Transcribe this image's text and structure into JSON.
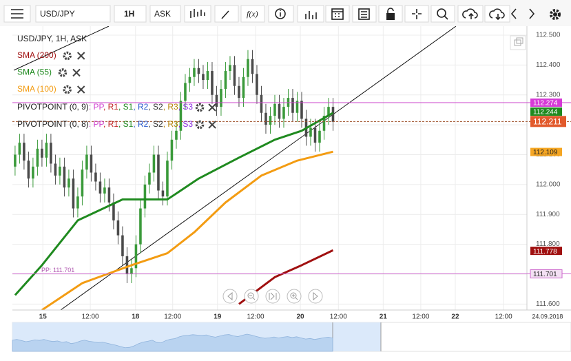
{
  "toolbar": {
    "symbol": "USD/JPY",
    "interval": "1H",
    "price": "ASK",
    "fx": "f(x)"
  },
  "chart_data": {
    "type": "candlestick",
    "legend": {
      "title": "USD/JPY, 1H, ASK",
      "indicators": [
        {
          "name": "SMA (200)",
          "color": "#a01010"
        },
        {
          "name": "SMA (55)",
          "color": "#1f8a1f"
        },
        {
          "name": "SMA (100)",
          "color": "#f39c12"
        }
      ],
      "pivots": [
        {
          "name": "PIVOTPOINT (0, 9)",
          "tokens": [
            ": PP",
            ", R1",
            ", S1",
            ", R2",
            ", S2",
            ", R3",
            ", S3"
          ]
        },
        {
          "name": "PIVOTPOINT (0, 8)",
          "tokens": [
            ": PP",
            ", R1",
            ", S1",
            ", R2",
            ", S2",
            ", R3",
            ", S3"
          ]
        }
      ],
      "token_colors": [
        "#d040d0",
        "#c02020",
        "#1f8a1f",
        "#2255cc",
        "#333333",
        "#b8860b",
        "#8a2be2"
      ]
    },
    "up_color": "#3a9a3a",
    "down_color": "#4a4a4a",
    "candles": [
      [
        112.06,
        112.13,
        112.03,
        112.1
      ],
      [
        112.1,
        112.17,
        112.07,
        112.14
      ],
      [
        112.14,
        112.17,
        112.05,
        112.08
      ],
      [
        112.08,
        112.11,
        111.99,
        112.02
      ],
      [
        112.02,
        112.09,
        111.99,
        112.06
      ],
      [
        112.06,
        112.15,
        112.03,
        112.12
      ],
      [
        112.12,
        112.15,
        112.06,
        112.09
      ],
      [
        112.09,
        112.17,
        112.06,
        112.14
      ],
      [
        112.14,
        112.17,
        112.04,
        112.07
      ],
      [
        112.07,
        112.1,
        112.0,
        112.03
      ],
      [
        112.03,
        112.09,
        112.0,
        112.06
      ],
      [
        112.06,
        112.09,
        111.96,
        111.99
      ],
      [
        111.99,
        112.05,
        111.96,
        112.02
      ],
      [
        112.02,
        112.05,
        111.89,
        111.92
      ],
      [
        111.92,
        111.99,
        111.89,
        111.96
      ],
      [
        111.96,
        112.08,
        111.93,
        112.05
      ],
      [
        112.05,
        112.13,
        112.02,
        112.1
      ],
      [
        112.1,
        112.13,
        112.01,
        112.04
      ],
      [
        112.04,
        112.07,
        111.98,
        112.01
      ],
      [
        112.01,
        112.04,
        111.94,
        111.97
      ],
      [
        111.97,
        112.02,
        111.94,
        111.99
      ],
      [
        111.99,
        112.02,
        111.91,
        111.94
      ],
      [
        111.94,
        111.97,
        111.85,
        111.88
      ],
      [
        111.88,
        111.91,
        111.8,
        111.83
      ],
      [
        111.83,
        111.86,
        111.73,
        111.76
      ],
      [
        111.76,
        111.79,
        111.67,
        111.7
      ],
      [
        111.7,
        111.75,
        111.67,
        111.72
      ],
      [
        111.72,
        111.83,
        111.69,
        111.8
      ],
      [
        111.8,
        111.95,
        111.77,
        111.92
      ],
      [
        111.92,
        112.03,
        111.89,
        112.0
      ],
      [
        112.0,
        112.07,
        111.97,
        112.04
      ],
      [
        112.04,
        112.13,
        112.01,
        112.1
      ],
      [
        112.1,
        112.13,
        111.95,
        111.98
      ],
      [
        111.98,
        112.01,
        111.93,
        111.96
      ],
      [
        111.96,
        112.11,
        111.93,
        112.08
      ],
      [
        112.08,
        112.18,
        112.05,
        112.15
      ],
      [
        112.15,
        112.21,
        112.12,
        112.18
      ],
      [
        112.18,
        112.31,
        112.15,
        112.28
      ],
      [
        112.28,
        112.37,
        112.25,
        112.34
      ],
      [
        112.34,
        112.39,
        112.31,
        112.36
      ],
      [
        112.36,
        112.42,
        112.33,
        112.39
      ],
      [
        112.39,
        112.42,
        112.34,
        112.37
      ],
      [
        112.37,
        112.4,
        112.32,
        112.35
      ],
      [
        112.35,
        112.41,
        112.32,
        112.38
      ],
      [
        112.38,
        112.41,
        112.27,
        112.3
      ],
      [
        112.3,
        112.33,
        112.23,
        112.26
      ],
      [
        112.26,
        112.35,
        112.23,
        112.32
      ],
      [
        112.32,
        112.41,
        112.29,
        112.38
      ],
      [
        112.38,
        112.43,
        112.35,
        112.4
      ],
      [
        112.4,
        112.43,
        112.3,
        112.33
      ],
      [
        112.33,
        112.36,
        112.26,
        112.29
      ],
      [
        112.29,
        112.39,
        112.26,
        112.36
      ],
      [
        112.36,
        112.45,
        112.33,
        112.42
      ],
      [
        112.42,
        112.45,
        112.34,
        112.37
      ],
      [
        112.37,
        112.4,
        112.27,
        112.3
      ],
      [
        112.3,
        112.33,
        112.21,
        112.24
      ],
      [
        112.24,
        112.27,
        112.17,
        112.2
      ],
      [
        112.2,
        112.26,
        112.17,
        112.23
      ],
      [
        112.23,
        112.3,
        112.2,
        112.27
      ],
      [
        112.27,
        112.3,
        112.19,
        112.22
      ],
      [
        112.22,
        112.29,
        112.19,
        112.26
      ],
      [
        112.26,
        112.32,
        112.23,
        112.29
      ],
      [
        112.29,
        112.32,
        112.21,
        112.24
      ],
      [
        112.24,
        112.31,
        112.21,
        112.28
      ],
      [
        112.28,
        112.31,
        112.19,
        112.22
      ],
      [
        112.22,
        112.25,
        112.13,
        112.16
      ],
      [
        112.16,
        112.22,
        112.13,
        112.19
      ],
      [
        112.19,
        112.22,
        112.11,
        112.14
      ],
      [
        112.14,
        112.21,
        112.11,
        112.18
      ],
      [
        112.18,
        112.26,
        112.15,
        112.23
      ],
      [
        112.23,
        112.29,
        112.2,
        112.26
      ],
      [
        112.26,
        112.29,
        112.18,
        112.21
      ]
    ],
    "series": [
      {
        "name": "SMA (55)",
        "color": "#1f8a1f",
        "x": [
          0,
          6,
          14,
          24,
          34,
          41,
          50,
          58,
          64,
          71
        ],
        "values": [
          111.63,
          111.73,
          111.88,
          111.95,
          111.95,
          112.02,
          112.09,
          112.15,
          112.18,
          112.24
        ]
      },
      {
        "name": "SMA (100)",
        "color": "#f39c12",
        "x": [
          6,
          15,
          26,
          34,
          40,
          47,
          55,
          63,
          71
        ],
        "values": [
          111.58,
          111.67,
          111.73,
          111.77,
          111.84,
          111.94,
          112.03,
          112.08,
          112.11
        ]
      },
      {
        "name": "SMA (200)",
        "color": "#a01010",
        "x": [
          50,
          58,
          64,
          71
        ],
        "values": [
          111.6,
          111.69,
          111.73,
          111.78
        ]
      }
    ],
    "hlines": [
      {
        "value": 112.274,
        "color": "#cc44cc",
        "dash": false
      },
      {
        "value": 111.701,
        "color": "#cc66cc",
        "dash": false
      },
      {
        "value": 112.211,
        "color": "#a0522d",
        "dash": true
      }
    ],
    "badges": [
      {
        "value": 112.274,
        "color": "#d63ad6",
        "text_color": "#ffffff"
      },
      {
        "value": 112.244,
        "color": "#1f8a1f",
        "text_color": "#ffffff"
      },
      {
        "value": 112.211,
        "color": "#e25a2c",
        "text_color": "#ffffff"
      },
      {
        "value": 112.109,
        "color": "#f5a623",
        "text_color": "#222222"
      },
      {
        "value": 111.778,
        "color": "#a01010",
        "text_color": "#ffffff"
      },
      {
        "value": 111.701,
        "color": "#f3e0f3",
        "text_color": "#222222"
      }
    ],
    "annotation": "PP: 111.701",
    "xlim": [
      -0.6,
      114.3
    ],
    "ylim": [
      111.58,
      112.53
    ],
    "grid": true,
    "yticks": [
      {
        "value": 112.5,
        "label": "112.500"
      },
      {
        "value": 112.4,
        "label": "112.400"
      },
      {
        "value": 112.3,
        "label": "112.300"
      },
      {
        "value": 112.2,
        "label": "112.200"
      },
      {
        "value": 112.1,
        "label": "112.100"
      },
      {
        "value": 112.0,
        "label": "112.000"
      },
      {
        "value": 111.9,
        "label": "111.900"
      },
      {
        "value": 111.8,
        "label": "111.800"
      },
      {
        "value": 111.7,
        "label": "111.700"
      },
      {
        "value": 111.6,
        "label": "111.600"
      }
    ],
    "xticks": [
      {
        "value": 6.2,
        "label": "15"
      },
      {
        "value": 16.8,
        "label": "12:00"
      },
      {
        "value": 26.9,
        "label": "18"
      },
      {
        "value": 35.2,
        "label": "12:00"
      },
      {
        "value": 45.2,
        "label": "19"
      },
      {
        "value": 53.7,
        "label": "12:00"
      },
      {
        "value": 63.7,
        "label": "20"
      },
      {
        "value": 72.2,
        "label": "12:00"
      },
      {
        "value": 82.2,
        "label": "21"
      },
      {
        "value": 90.6,
        "label": "12:00"
      },
      {
        "value": 98.3,
        "label": "22"
      },
      {
        "value": 109.1,
        "label": "12:00"
      },
      {
        "value": 118.9,
        "label": "24.09.2018"
      }
    ]
  }
}
